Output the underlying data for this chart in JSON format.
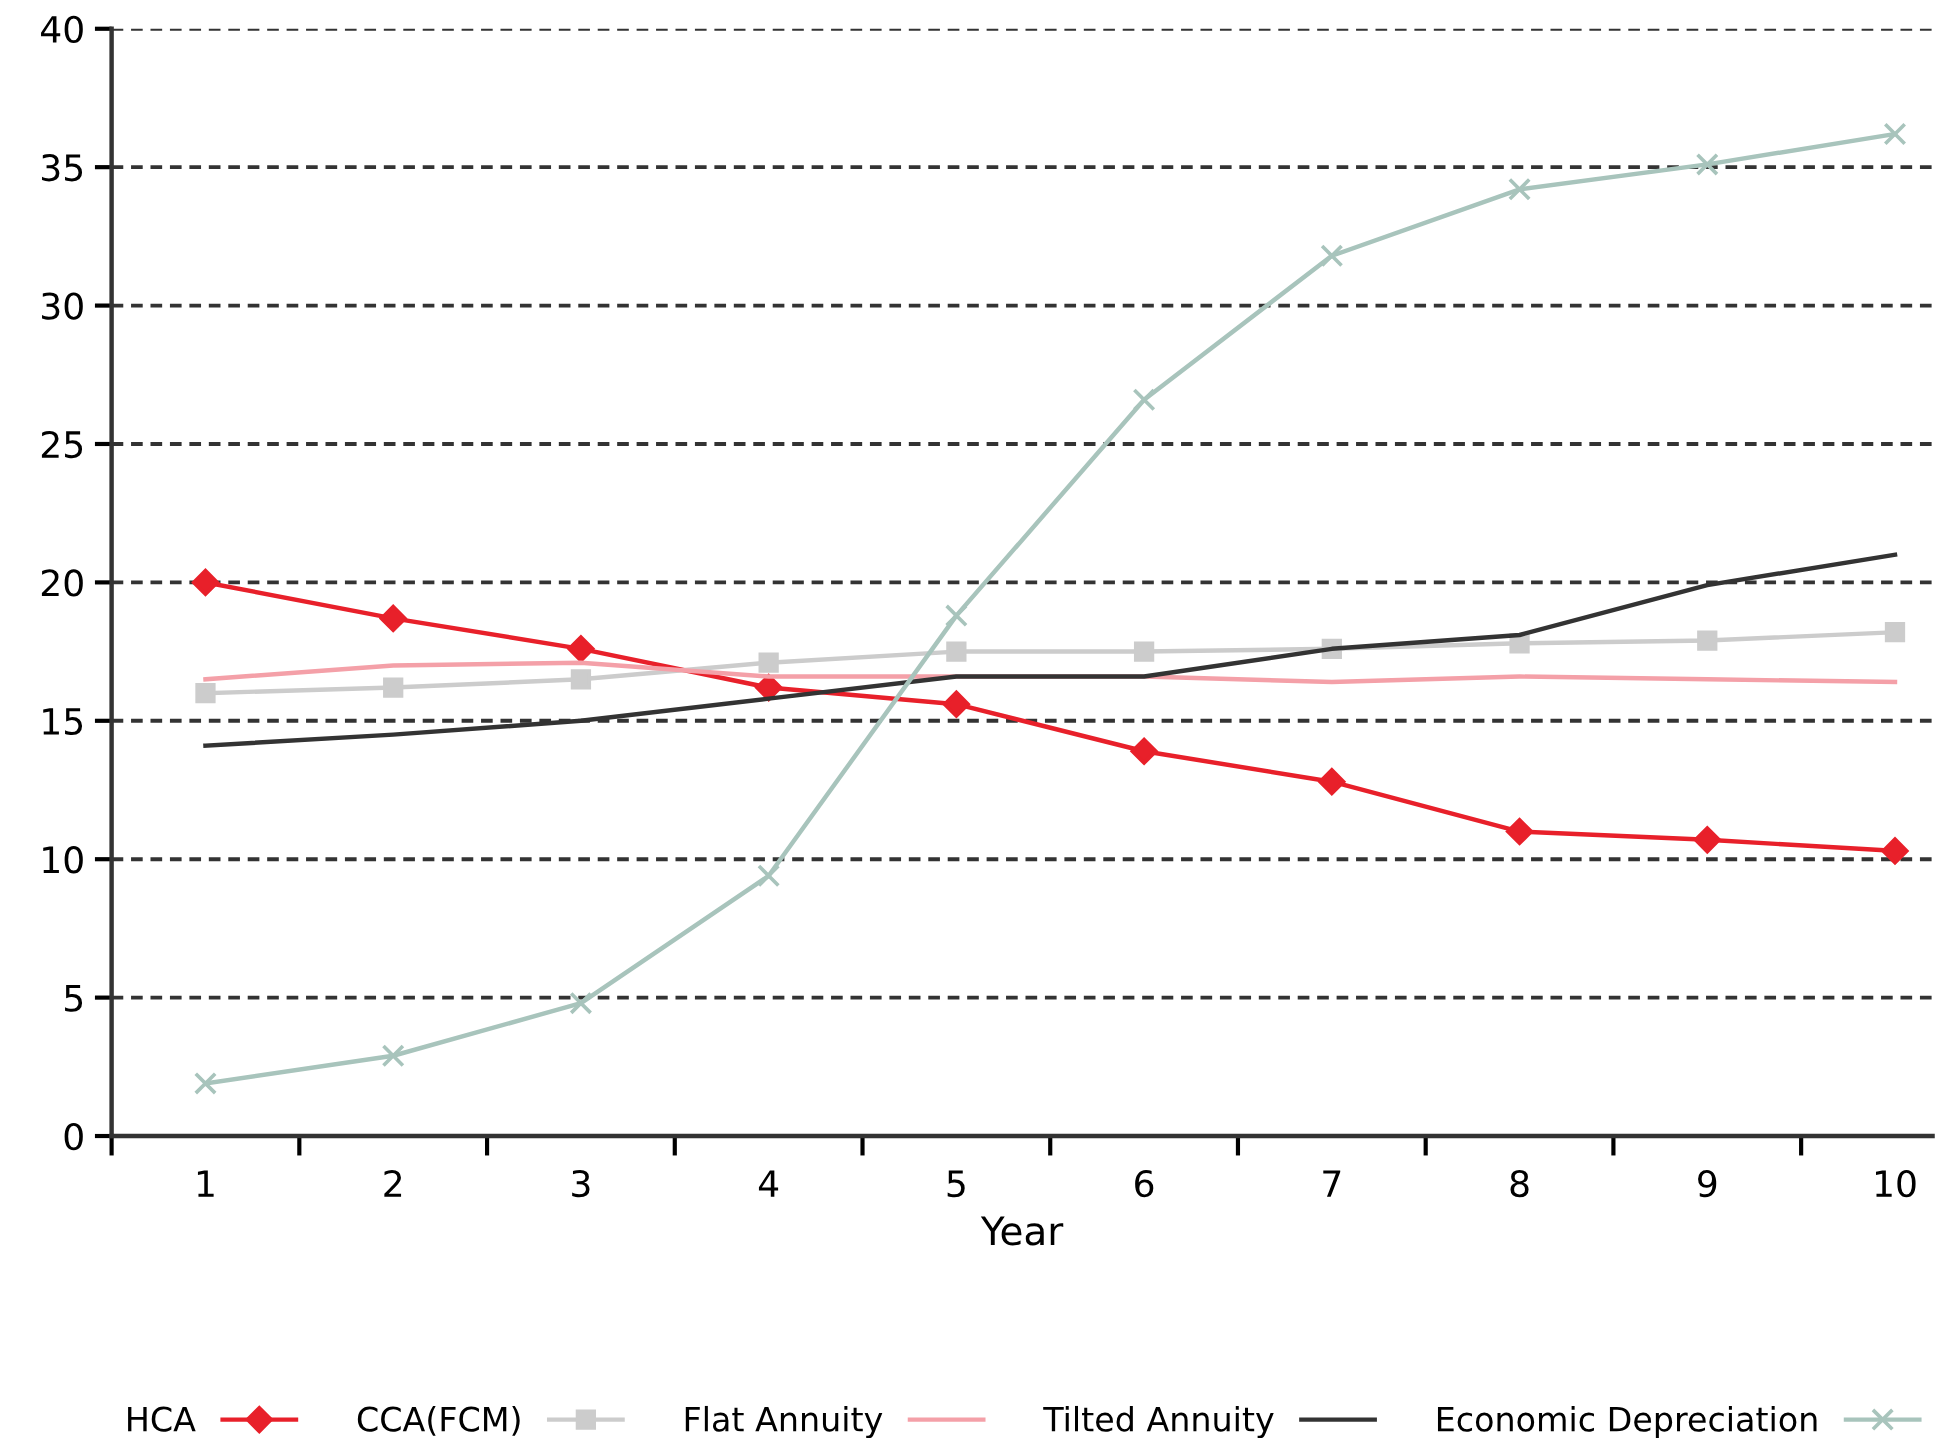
{
  "chart_data": {
    "type": "line",
    "xlabel": "Year",
    "categories": [
      "1",
      "2",
      "3",
      "4",
      "5",
      "6",
      "7",
      "8",
      "9",
      "10"
    ],
    "ylim": [
      0,
      40
    ],
    "yticks": [
      0,
      5,
      10,
      15,
      20,
      25,
      30,
      35,
      40
    ],
    "grid": "y",
    "legend": "bottom",
    "line_style": "solid",
    "series": [
      {
        "name": "HCA",
        "color": "#e8202a",
        "marker": "diamond",
        "values": [
          20.0,
          18.7,
          17.6,
          16.2,
          15.6,
          13.9,
          12.8,
          11.0,
          10.7,
          10.3
        ]
      },
      {
        "name": "CCA(FCM)",
        "color": "#cccccc",
        "marker": "square",
        "values": [
          16.0,
          16.2,
          16.5,
          17.1,
          17.5,
          17.5,
          17.6,
          17.8,
          17.9,
          18.2
        ]
      },
      {
        "name": "Flat Annuity",
        "color": "#f4a0a8",
        "marker": "none",
        "values": [
          16.5,
          17.0,
          17.1,
          16.6,
          16.6,
          16.6,
          16.4,
          16.6,
          16.5,
          16.4
        ]
      },
      {
        "name": "Tilted Annuity",
        "color": "#333333",
        "marker": "none",
        "values": [
          14.1,
          14.5,
          15.0,
          15.8,
          16.6,
          16.6,
          17.6,
          18.1,
          19.9,
          21.0
        ]
      },
      {
        "name": "Economic Depreciation",
        "color": "#a8c4bc",
        "marker": "cross",
        "values": [
          1.9,
          2.9,
          4.8,
          9.4,
          18.8,
          26.6,
          31.8,
          34.2,
          35.1,
          36.2
        ]
      }
    ]
  }
}
